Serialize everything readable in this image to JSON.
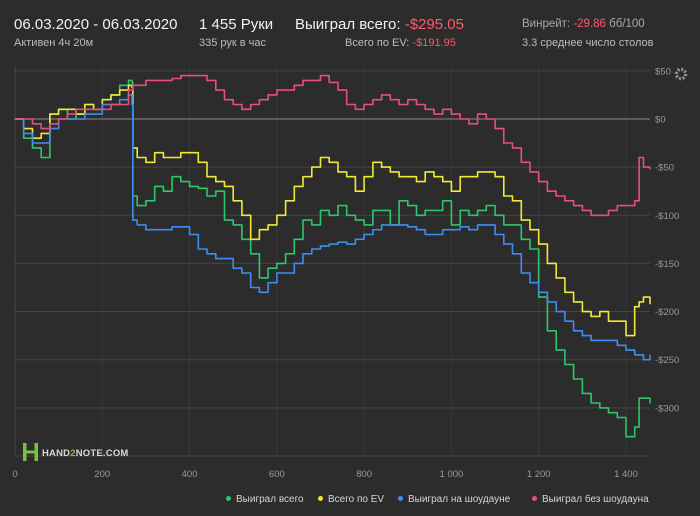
{
  "header": {
    "date_range": "06.03.2020 - 06.03.2020",
    "active": "Активен 4ч 20м",
    "hands": "1 455 Руки",
    "per_hour": "335 рук в час",
    "won_total_label": "Выиграл всего:",
    "won_total_value": "-$295.05",
    "ev_total_label": "Всего по EV:",
    "ev_total_value": "-$191.95",
    "winrate_label": "Винрейт:",
    "winrate_value": "-29.86",
    "winrate_unit": "бб/100",
    "tables": "3.3 среднее число столов"
  },
  "logo": {
    "pre": "HAND",
    "mid": "2",
    "post": "NOTE.COM"
  },
  "icons": {
    "settings": "gear-icon",
    "logo": "h2n-logo-icon"
  },
  "colors": {
    "won": "#2cc76a",
    "ev": "#f2e936",
    "showdown": "#3d8ef0",
    "non_showdown": "#e84f79",
    "negative": "#ff5a6e"
  },
  "chart_data": {
    "type": "line",
    "step": true,
    "xlim": [
      0,
      1455
    ],
    "ylim": [
      -350,
      55
    ],
    "x_ticks": [
      0,
      200,
      400,
      600,
      800,
      1000,
      1200,
      1400
    ],
    "x_tick_labels": [
      "0",
      "200",
      "400",
      "600",
      "800",
      "1 000",
      "1 200",
      "1 400"
    ],
    "y_ticks": [
      50,
      0,
      -50,
      -100,
      -150,
      -200,
      -250,
      -300
    ],
    "y_tick_labels": [
      "$50",
      "$0",
      "-$50",
      "-$100",
      "-$150",
      "-$200",
      "-$250",
      "-$300"
    ],
    "grid": true,
    "legend_position": "bottom-right",
    "series": [
      {
        "name": "Выиграл всего",
        "color": "#2cc76a",
        "x": [
          0,
          20,
          40,
          60,
          80,
          100,
          120,
          140,
          160,
          180,
          200,
          220,
          240,
          260,
          268,
          270,
          280,
          300,
          320,
          340,
          360,
          380,
          400,
          420,
          440,
          460,
          480,
          500,
          520,
          540,
          560,
          580,
          600,
          620,
          640,
          660,
          680,
          700,
          720,
          740,
          760,
          780,
          800,
          820,
          840,
          860,
          880,
          900,
          920,
          940,
          960,
          980,
          1000,
          1020,
          1040,
          1060,
          1080,
          1100,
          1120,
          1140,
          1160,
          1180,
          1200,
          1220,
          1240,
          1260,
          1280,
          1300,
          1320,
          1340,
          1360,
          1380,
          1400,
          1420,
          1430,
          1440,
          1455
        ],
        "y": [
          0,
          -20,
          -30,
          -40,
          5,
          10,
          0,
          5,
          15,
          10,
          20,
          25,
          35,
          40,
          38,
          -80,
          -90,
          -85,
          -70,
          -75,
          -60,
          -65,
          -70,
          -72,
          -80,
          -75,
          -105,
          -110,
          -125,
          -140,
          -165,
          -155,
          -150,
          -140,
          -125,
          -105,
          -110,
          -95,
          -100,
          -90,
          -100,
          -105,
          -110,
          -95,
          -95,
          -110,
          -85,
          -90,
          -100,
          -95,
          -95,
          -85,
          -110,
          -95,
          -100,
          -95,
          -90,
          -100,
          -110,
          -110,
          -125,
          -135,
          -185,
          -220,
          -240,
          -255,
          -270,
          -285,
          -295,
          -300,
          -305,
          -310,
          -330,
          -320,
          -290,
          -290,
          -295
        ]
      },
      {
        "name": "Всего по EV",
        "color": "#f2e936",
        "x": [
          0,
          20,
          40,
          60,
          80,
          100,
          120,
          140,
          160,
          180,
          200,
          220,
          240,
          260,
          268,
          270,
          280,
          300,
          320,
          340,
          360,
          380,
          400,
          420,
          440,
          460,
          480,
          500,
          520,
          540,
          560,
          580,
          600,
          620,
          640,
          660,
          680,
          700,
          720,
          740,
          760,
          780,
          800,
          820,
          840,
          860,
          880,
          900,
          920,
          940,
          960,
          980,
          1000,
          1020,
          1040,
          1060,
          1080,
          1100,
          1120,
          1140,
          1160,
          1180,
          1200,
          1220,
          1240,
          1260,
          1280,
          1300,
          1320,
          1340,
          1360,
          1380,
          1400,
          1420,
          1430,
          1440,
          1455
        ],
        "y": [
          0,
          -10,
          -20,
          -15,
          5,
          10,
          10,
          5,
          15,
          10,
          20,
          25,
          30,
          35,
          33,
          -30,
          -40,
          -45,
          -35,
          -40,
          -40,
          -35,
          -35,
          -45,
          -60,
          -65,
          -70,
          -85,
          -100,
          -125,
          -115,
          -110,
          -100,
          -85,
          -70,
          -60,
          -50,
          -40,
          -45,
          -55,
          -60,
          -75,
          -60,
          -45,
          -50,
          -55,
          -60,
          -60,
          -65,
          -55,
          -60,
          -65,
          -75,
          -60,
          -60,
          -55,
          -55,
          -60,
          -80,
          -85,
          -105,
          -115,
          -130,
          -150,
          -165,
          -180,
          -190,
          -200,
          -205,
          -200,
          -210,
          -210,
          -225,
          -195,
          -190,
          -185,
          -192
        ]
      },
      {
        "name": "Выиграл на шоудауне",
        "color": "#3d8ef0",
        "x": [
          0,
          20,
          40,
          60,
          80,
          100,
          120,
          140,
          160,
          180,
          200,
          220,
          240,
          260,
          268,
          270,
          280,
          300,
          320,
          340,
          360,
          380,
          400,
          420,
          440,
          460,
          480,
          500,
          520,
          540,
          560,
          580,
          600,
          620,
          640,
          660,
          680,
          700,
          720,
          740,
          760,
          780,
          800,
          820,
          840,
          860,
          880,
          900,
          920,
          940,
          960,
          980,
          1000,
          1020,
          1040,
          1060,
          1080,
          1100,
          1120,
          1140,
          1160,
          1180,
          1200,
          1220,
          1240,
          1260,
          1280,
          1300,
          1320,
          1340,
          1360,
          1380,
          1400,
          1420,
          1430,
          1440,
          1455
        ],
        "y": [
          0,
          -15,
          -25,
          -25,
          -10,
          0,
          0,
          0,
          5,
          5,
          15,
          15,
          20,
          25,
          15,
          -105,
          -110,
          -115,
          -115,
          -115,
          -112,
          -112,
          -120,
          -135,
          -140,
          -145,
          -145,
          -155,
          -160,
          -175,
          -180,
          -170,
          -160,
          -160,
          -150,
          -140,
          -135,
          -132,
          -130,
          -128,
          -130,
          -125,
          -120,
          -115,
          -110,
          -110,
          -110,
          -112,
          -115,
          -120,
          -120,
          -115,
          -115,
          -112,
          -115,
          -110,
          -110,
          -120,
          -130,
          -140,
          -160,
          -170,
          -180,
          -190,
          -200,
          -210,
          -220,
          -225,
          -230,
          -230,
          -230,
          -235,
          -240,
          -245,
          -245,
          -250,
          -245
        ]
      },
      {
        "name": "Выиграл без шоудауна",
        "color": "#e84f79",
        "x": [
          0,
          20,
          40,
          60,
          80,
          100,
          120,
          140,
          160,
          180,
          200,
          220,
          240,
          260,
          268,
          270,
          280,
          300,
          320,
          340,
          360,
          380,
          400,
          420,
          440,
          460,
          480,
          500,
          520,
          540,
          560,
          580,
          600,
          620,
          640,
          660,
          680,
          700,
          720,
          740,
          760,
          780,
          800,
          820,
          840,
          860,
          880,
          900,
          920,
          940,
          960,
          980,
          1000,
          1020,
          1040,
          1060,
          1080,
          1100,
          1120,
          1140,
          1160,
          1180,
          1200,
          1220,
          1240,
          1260,
          1280,
          1300,
          1320,
          1340,
          1360,
          1380,
          1400,
          1420,
          1430,
          1440,
          1455
        ],
        "y": [
          0,
          0,
          -5,
          -10,
          -5,
          0,
          5,
          10,
          10,
          10,
          10,
          15,
          15,
          30,
          30,
          35,
          35,
          40,
          40,
          40,
          42,
          45,
          45,
          45,
          40,
          30,
          20,
          15,
          10,
          15,
          20,
          25,
          30,
          30,
          35,
          40,
          40,
          45,
          38,
          30,
          15,
          10,
          15,
          20,
          25,
          20,
          15,
          20,
          15,
          10,
          5,
          10,
          5,
          0,
          -5,
          5,
          0,
          -10,
          -25,
          -30,
          -45,
          -55,
          -65,
          -75,
          -80,
          -85,
          -90,
          -95,
          -100,
          -100,
          -95,
          -90,
          -90,
          -85,
          -40,
          -50,
          -52
        ]
      }
    ]
  },
  "legend": {
    "items": [
      {
        "label": "Выиграл всего",
        "color": "#2cc76a"
      },
      {
        "label": "Всего по EV",
        "color": "#f2e936"
      },
      {
        "label": "Выиграл на шоудауне",
        "color": "#3d8ef0"
      },
      {
        "label": "Выиграл без шоудауна",
        "color": "#e84f79"
      }
    ]
  }
}
